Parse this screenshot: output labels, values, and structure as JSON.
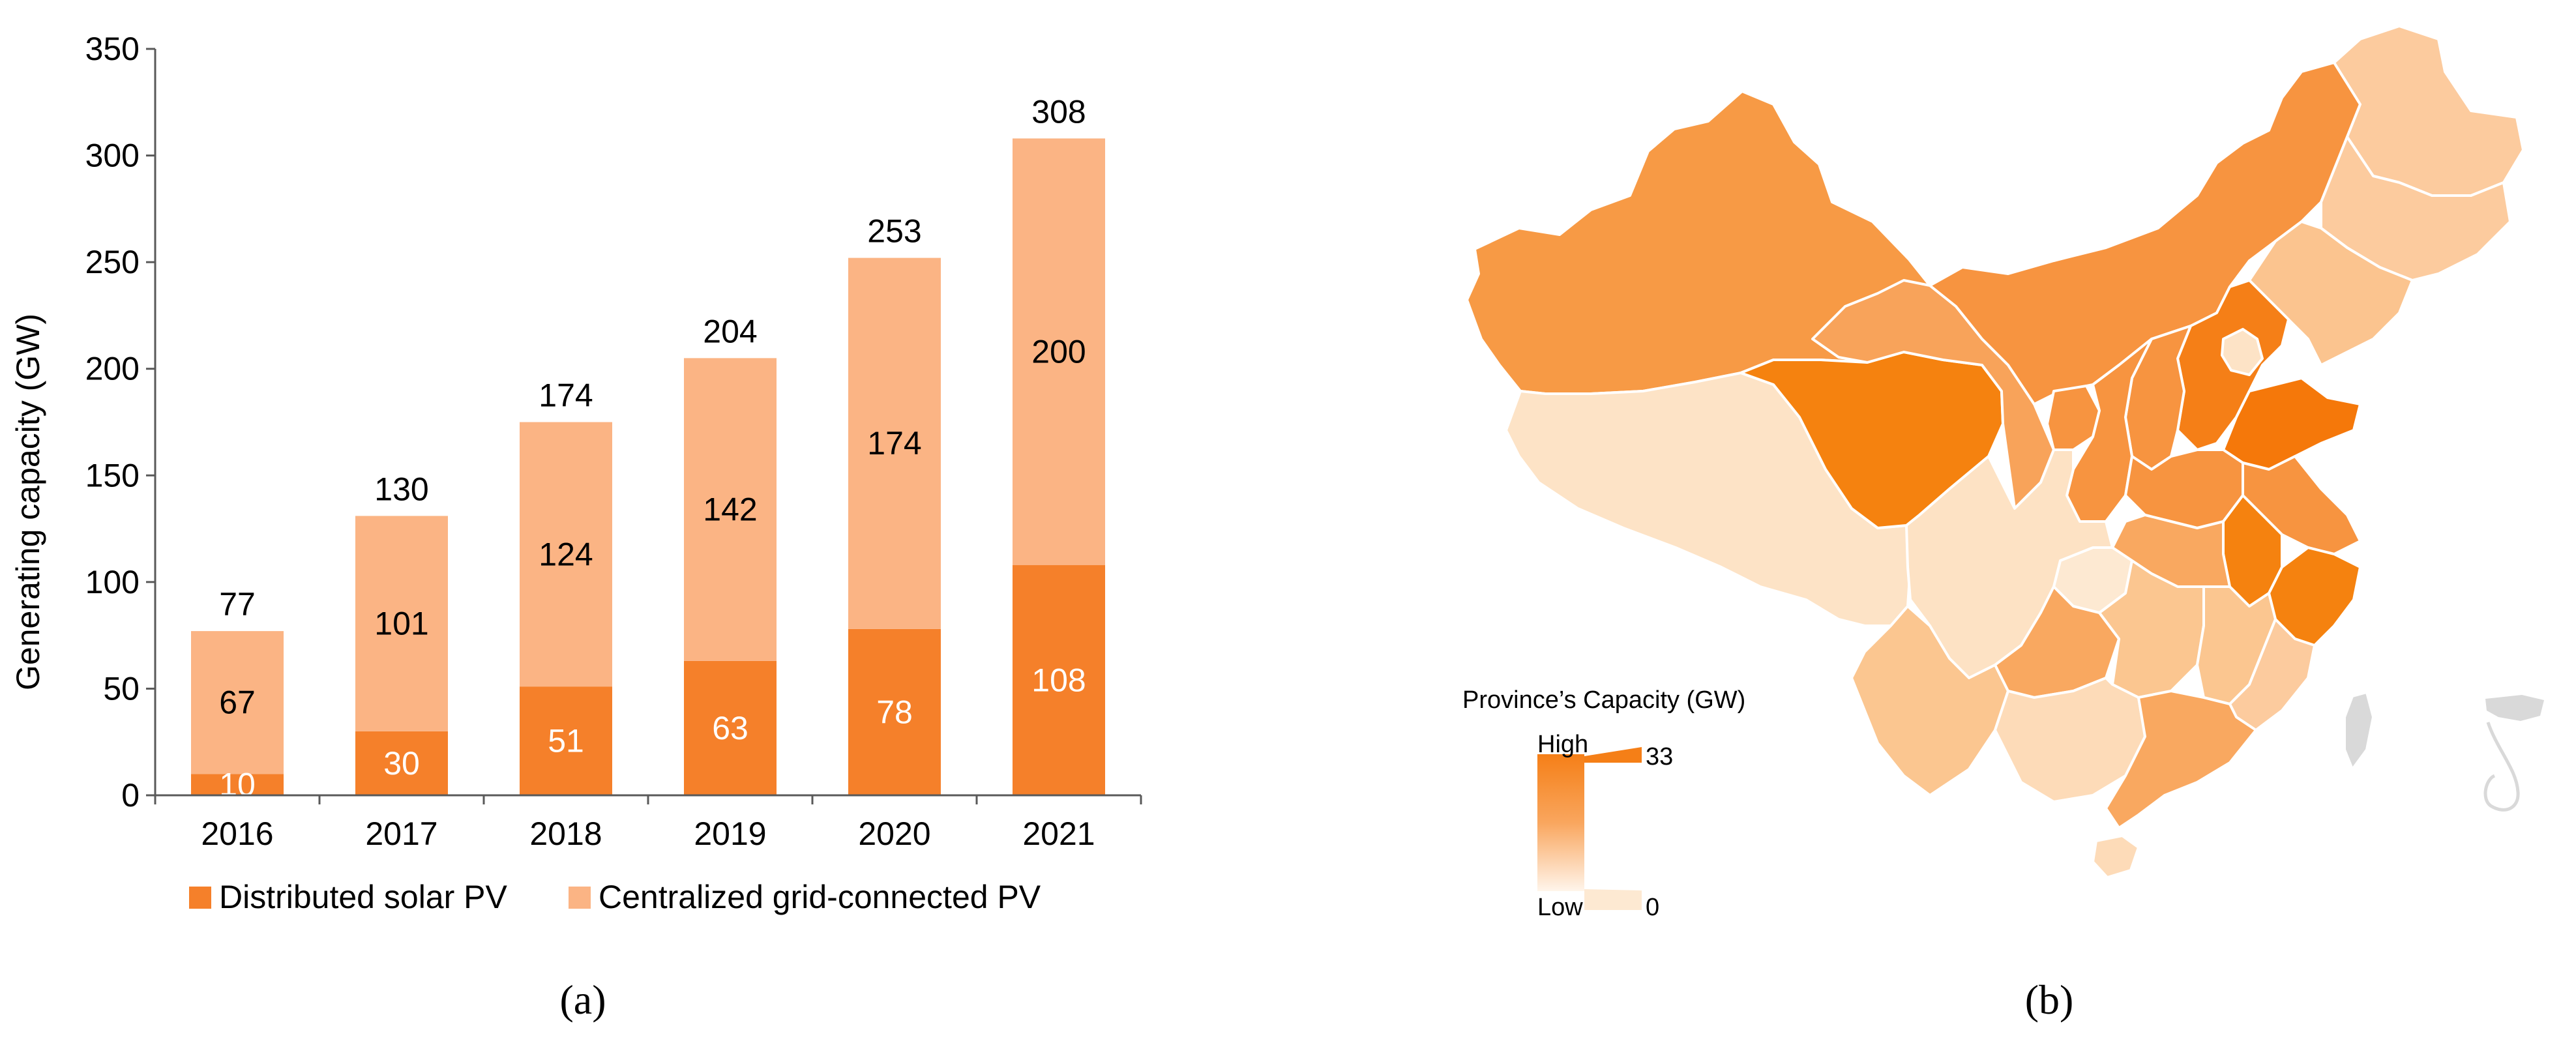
{
  "panel_labels": {
    "a": "(a)",
    "b": "(b)"
  },
  "chart_data": {
    "type": "bar",
    "stacked": true,
    "categories": [
      "2016",
      "2017",
      "2018",
      "2019",
      "2020",
      "2021"
    ],
    "series": [
      {
        "name": "Distributed solar PV",
        "values": [
          10,
          30,
          51,
          63,
          78,
          108
        ],
        "color": "#F5802A"
      },
      {
        "name": "Centralized grid-connected PV",
        "values": [
          67,
          101,
          124,
          142,
          174,
          200
        ],
        "color": "#FBB484"
      }
    ],
    "totals": [
      77,
      130,
      174,
      204,
      253,
      308
    ],
    "ylabel": "Generating capacity (GW)",
    "xlabel": "",
    "ylim": [
      0,
      350
    ],
    "yticks": [
      0,
      50,
      100,
      150,
      200,
      250,
      300,
      350
    ],
    "grid": false,
    "legend": "bottom"
  },
  "map": {
    "legend_title": "Province’s Capacity (GW)",
    "legend_high_label": "High",
    "legend_low_label": "Low",
    "legend_max": "33",
    "legend_min": "0",
    "colors": {
      "high": "#F57F17",
      "mid": "#F9A75C",
      "low": "#FDE4C8",
      "none": "#D9D9D9",
      "border": "#FFFFFF"
    }
  }
}
